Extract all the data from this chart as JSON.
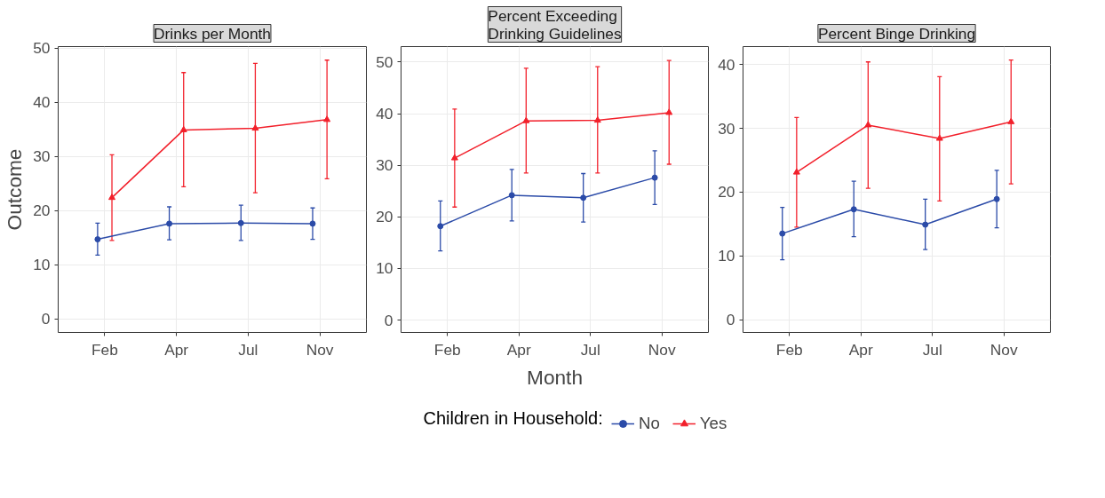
{
  "chart_data": [
    {
      "type": "line",
      "title": "Drinks per Month",
      "ylabel": "Outcome",
      "categories": [
        "Feb",
        "Apr",
        "Jul",
        "Nov"
      ],
      "ylim": [
        -2.5,
        50.3
      ],
      "yticks": [
        0,
        10,
        20,
        30,
        40,
        50
      ],
      "grid": true,
      "line_style": "solid",
      "series": [
        {
          "color": "#2b4ba8",
          "marker": "circle",
          "values": [
            14.7,
            17.6,
            17.7,
            17.6
          ],
          "errors": [
            [
              11.8,
              17.7
            ],
            [
              14.6,
              20.7
            ],
            [
              14.5,
              21.0
            ],
            [
              14.7,
              20.5
            ]
          ]
        },
        {
          "color": "#f2202b",
          "marker": "triangle",
          "values": [
            22.4,
            34.9,
            35.2,
            36.8
          ],
          "errors": [
            [
              14.5,
              30.3
            ],
            [
              24.4,
              45.5
            ],
            [
              23.3,
              47.2
            ],
            [
              25.9,
              47.8
            ]
          ]
        }
      ]
    },
    {
      "type": "line",
      "title": "Percent Exceeding\nDrinking Guidelines",
      "xlabel": "Month",
      "legend_title": "Children in Household:",
      "legend": "bottom",
      "categories": [
        "Feb",
        "Apr",
        "Jul",
        "Nov"
      ],
      "ylim": [
        -2.4,
        53
      ],
      "yticks": [
        0,
        10,
        20,
        30,
        40,
        50
      ],
      "grid": true,
      "line_style": "solid",
      "series": [
        {
          "name": "No",
          "color": "#2b4ba8",
          "marker": "circle",
          "values": [
            18.2,
            24.2,
            23.7,
            27.6
          ],
          "errors": [
            [
              13.4,
              23.1
            ],
            [
              19.2,
              29.2
            ],
            [
              19.0,
              28.4
            ],
            [
              22.4,
              32.8
            ]
          ]
        },
        {
          "name": "Yes",
          "color": "#f2202b",
          "marker": "triangle",
          "values": [
            31.4,
            38.6,
            38.7,
            40.2
          ],
          "errors": [
            [
              21.9,
              40.9
            ],
            [
              28.5,
              48.8
            ],
            [
              28.5,
              49.1
            ],
            [
              30.2,
              50.3
            ]
          ]
        }
      ]
    },
    {
      "type": "line",
      "title": "Percent Binge Drinking",
      "categories": [
        "Feb",
        "Apr",
        "Jul",
        "Nov"
      ],
      "ylim": [
        -2.0,
        42.8
      ],
      "yticks": [
        0,
        10,
        20,
        30,
        40
      ],
      "grid": true,
      "line_style": "solid",
      "series": [
        {
          "color": "#2b4ba8",
          "marker": "circle",
          "values": [
            13.5,
            17.3,
            14.9,
            18.9
          ],
          "errors": [
            [
              9.4,
              17.6
            ],
            [
              13.0,
              21.7
            ],
            [
              11.0,
              18.9
            ],
            [
              14.4,
              23.4
            ]
          ]
        },
        {
          "color": "#f2202b",
          "marker": "triangle",
          "values": [
            23.1,
            30.5,
            28.4,
            31.0
          ],
          "errors": [
            [
              14.5,
              31.7
            ],
            [
              20.6,
              40.4
            ],
            [
              18.6,
              38.1
            ],
            [
              21.3,
              40.7
            ]
          ]
        }
      ]
    }
  ]
}
